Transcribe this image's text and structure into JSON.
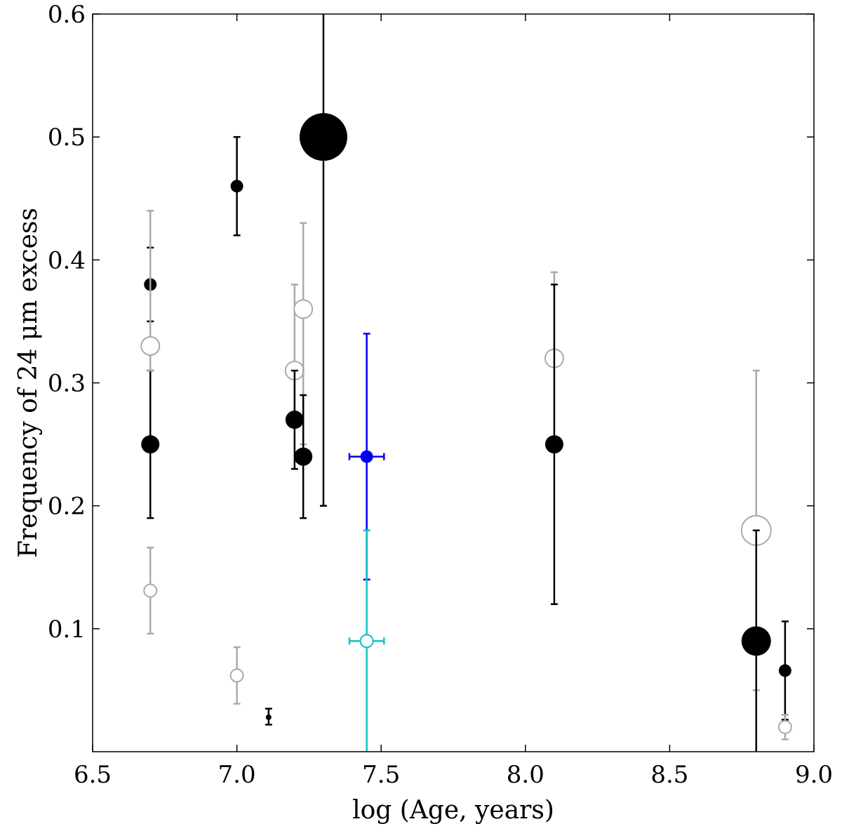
{
  "chart_data": {
    "type": "scatter",
    "xlabel": "log (Age, years)",
    "ylabel": "Frequency of 24 μm excess",
    "xlim": [
      6.5,
      9.0
    ],
    "ylim": [
      0.0,
      0.6
    ],
    "xticks": [
      "6.5",
      "7.0",
      "7.5",
      "8.0",
      "8.5",
      "9.0"
    ],
    "yticks": [
      "0.1",
      "0.2",
      "0.3",
      "0.4",
      "0.5",
      "0.6"
    ],
    "grid": false,
    "colors": {
      "black": "#000000",
      "gray": "#aaaaaa",
      "blue": "#0000ee",
      "cyan": "#17bfbf"
    },
    "points": [
      {
        "x": 6.7,
        "y": 0.38,
        "y_err": [
          0.35,
          0.41
        ],
        "style": "filled",
        "color": "black",
        "size": "small"
      },
      {
        "x": 6.7,
        "y": 0.25,
        "y_err": [
          0.19,
          0.31
        ],
        "style": "filled",
        "color": "black",
        "size": "medium"
      },
      {
        "x": 6.7,
        "y": 0.33,
        "y_err": [
          0.31,
          0.44
        ],
        "style": "open",
        "color": "gray",
        "size": "medium"
      },
      {
        "x": 6.7,
        "y": 0.131,
        "y_err": [
          0.096,
          0.166
        ],
        "style": "open",
        "color": "gray",
        "size": "small"
      },
      {
        "x": 7.0,
        "y": 0.46,
        "y_err": [
          0.42,
          0.5
        ],
        "style": "filled",
        "color": "black",
        "size": "small"
      },
      {
        "x": 7.0,
        "y": 0.062,
        "y_err": [
          0.039,
          0.085
        ],
        "style": "open",
        "color": "gray",
        "size": "small"
      },
      {
        "x": 7.11,
        "y": 0.028,
        "y_err": [
          0.022,
          0.035
        ],
        "style": "filled",
        "color": "black",
        "size": "tiny"
      },
      {
        "x": 7.2,
        "y": 0.31,
        "y_err": [
          0.27,
          0.38
        ],
        "style": "open",
        "color": "gray",
        "size": "medium"
      },
      {
        "x": 7.2,
        "y": 0.27,
        "y_err": [
          0.23,
          0.31
        ],
        "style": "filled",
        "color": "black",
        "size": "medium"
      },
      {
        "x": 7.23,
        "y": 0.36,
        "y_err": [
          0.25,
          0.43
        ],
        "style": "open",
        "color": "gray",
        "size": "medium"
      },
      {
        "x": 7.23,
        "y": 0.24,
        "y_err": [
          0.19,
          0.29
        ],
        "style": "filled",
        "color": "black",
        "size": "medium"
      },
      {
        "x": 7.3,
        "y": 0.5,
        "y_err": [
          0.2,
          0.6
        ],
        "style": "filled",
        "color": "black",
        "size": "xlarge"
      },
      {
        "x": 7.45,
        "y": 0.24,
        "y_err": [
          0.14,
          0.34
        ],
        "x_err": [
          7.39,
          7.51
        ],
        "style": "filled",
        "color": "blue",
        "size": "small"
      },
      {
        "x": 7.45,
        "y": 0.09,
        "y_err": [
          0.0,
          0.18
        ],
        "x_err": [
          7.39,
          7.51
        ],
        "style": "open",
        "color": "cyan",
        "size": "small"
      },
      {
        "x": 8.1,
        "y": 0.32,
        "y_err": [
          0.25,
          0.39
        ],
        "style": "open",
        "color": "gray",
        "size": "medium"
      },
      {
        "x": 8.1,
        "y": 0.25,
        "y_err": [
          0.12,
          0.38
        ],
        "style": "filled",
        "color": "black",
        "size": "medium"
      },
      {
        "x": 8.8,
        "y": 0.18,
        "y_err": [
          0.05,
          0.31
        ],
        "style": "open",
        "color": "gray",
        "size": "large"
      },
      {
        "x": 8.8,
        "y": 0.09,
        "y_err": [
          0.0,
          0.18
        ],
        "style": "filled",
        "color": "black",
        "size": "large"
      },
      {
        "x": 8.9,
        "y": 0.066,
        "y_err": [
          0.026,
          0.106
        ],
        "style": "filled",
        "color": "black",
        "size": "small"
      },
      {
        "x": 8.9,
        "y": 0.02,
        "y_err": [
          0.01,
          0.03
        ],
        "style": "open",
        "color": "gray",
        "size": "small"
      }
    ]
  }
}
